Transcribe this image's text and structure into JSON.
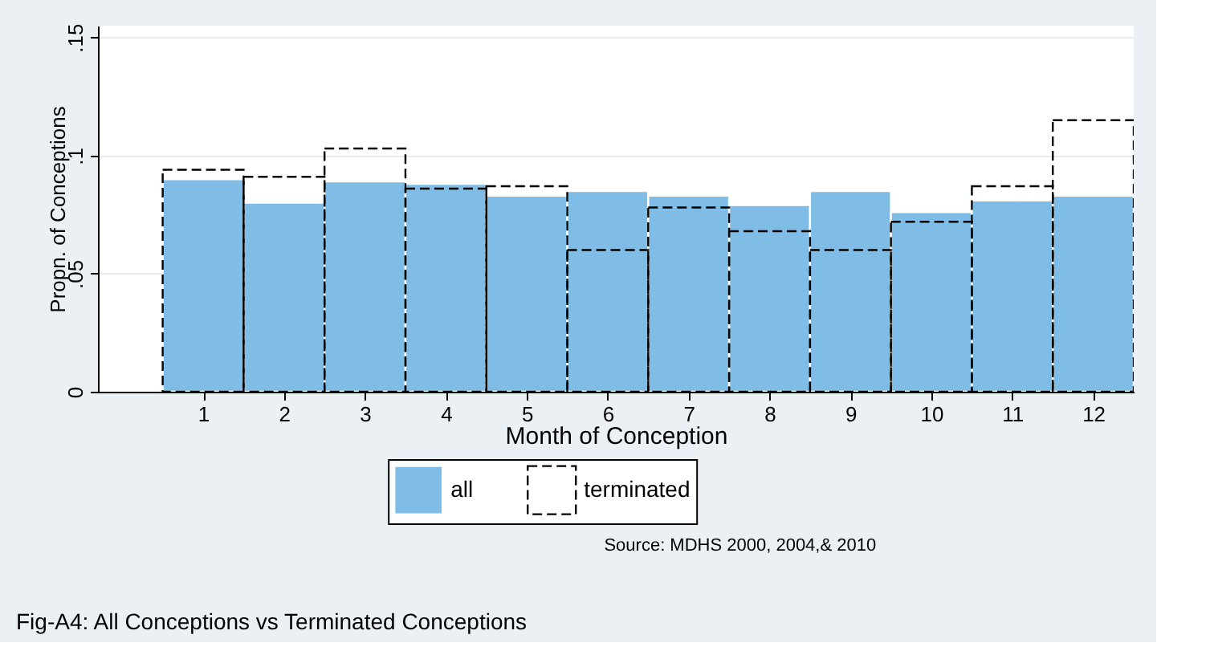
{
  "chart_data": {
    "type": "bar",
    "title": "Fig-A4: All Conceptions vs Terminated Conceptions",
    "xlabel": "Month of Conception",
    "ylabel": "Propn. of Conceptions",
    "x": [
      1,
      2,
      3,
      4,
      5,
      6,
      7,
      8,
      9,
      10,
      11,
      12
    ],
    "series": [
      {
        "name": "all",
        "color": "#7fbce6",
        "values": [
          0.09,
          0.08,
          0.089,
          0.088,
          0.083,
          0.085,
          0.083,
          0.079,
          0.085,
          0.076,
          0.081,
          0.083
        ]
      },
      {
        "name": "terminated",
        "color": "#000000",
        "line_style": "dashed",
        "values": [
          0.094,
          0.091,
          0.103,
          0.086,
          0.087,
          0.06,
          0.078,
          0.068,
          0.06,
          0.072,
          0.087,
          0.115
        ]
      }
    ],
    "xlim": [
      -0.3,
      12.5
    ],
    "xticks": [
      1,
      2,
      3,
      4,
      5,
      6,
      7,
      8,
      9,
      10,
      11,
      12
    ],
    "ylim": [
      0,
      0.155
    ],
    "yticks": [
      0,
      {
        "value": 0.05,
        "label": ".05"
      },
      {
        "value": 0.1,
        "label": ".1"
      },
      {
        "value": 0.15,
        "label": ".15"
      }
    ],
    "grid": "y",
    "legend": "bottom",
    "annotations": [
      "Source: MDHS 2000, 2004,& 2010"
    ]
  }
}
